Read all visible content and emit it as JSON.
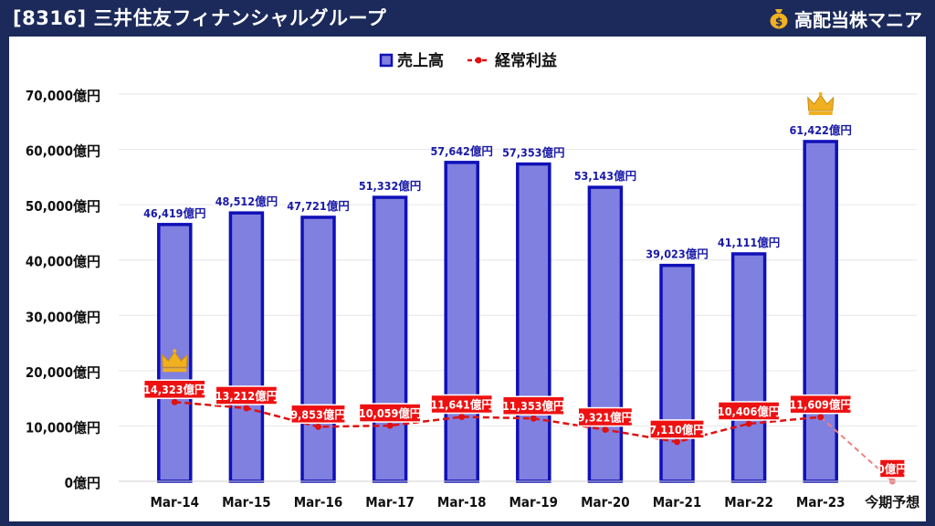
{
  "header": {
    "title": "[8316] 三井住友フィナンシャルグループ",
    "brand": "高配当株マニア",
    "brand_icon": "money-bag-icon"
  },
  "colors": {
    "header_bg": "#1b2a5a",
    "bar_fill": "#8080e0",
    "bar_stroke": "#1010b8",
    "label_blue": "#1a1aa8",
    "line_red": "#e01010",
    "line_forecast": "#f08080",
    "label_red_bg": "#ee1111",
    "crown": "#f0b020",
    "grid": "#e6e6e6"
  },
  "chart_data": {
    "type": "bar",
    "categories": [
      "Mar-14",
      "Mar-15",
      "Mar-16",
      "Mar-17",
      "Mar-18",
      "Mar-19",
      "Mar-20",
      "Mar-21",
      "Mar-22",
      "Mar-23",
      "今期予想"
    ],
    "series": [
      {
        "name": "売上高",
        "type": "bar",
        "values": [
          46419,
          48512,
          47721,
          51332,
          57642,
          57353,
          53143,
          39023,
          41111,
          61422,
          null
        ],
        "labels": [
          "46,419億円",
          "48,512億円",
          "47,721億円",
          "51,332億円",
          "57,642億円",
          "57,353億円",
          "53,143億円",
          "39,023億円",
          "41,111億円",
          "61,422億円",
          ""
        ]
      },
      {
        "name": "経常利益",
        "type": "line",
        "values": [
          14323,
          13212,
          9853,
          10059,
          11641,
          11353,
          9321,
          7110,
          10406,
          11609,
          0
        ],
        "labels": [
          "14,323億円",
          "13,212億円",
          "9,853億円",
          "10,059億円",
          "11,641億円",
          "11,353億円",
          "9,321億円",
          "7,110億円",
          "10,406億円",
          "11,609億円",
          "0億円"
        ]
      }
    ],
    "ylim": [
      0,
      70000
    ],
    "yticks": [
      0,
      10000,
      20000,
      30000,
      40000,
      50000,
      60000,
      70000
    ],
    "ytick_labels": [
      "0億円",
      "10,000億円",
      "20,000億円",
      "30,000億円",
      "40,000億円",
      "50,000億円",
      "60,000億円",
      "70,000億円"
    ],
    "legend_position": "top-center",
    "grid": true,
    "highlights": [
      {
        "series": "売上高",
        "category": "Mar-23",
        "marker": "crown-icon"
      },
      {
        "series": "経常利益",
        "category": "Mar-14",
        "marker": "crown-icon"
      }
    ]
  }
}
